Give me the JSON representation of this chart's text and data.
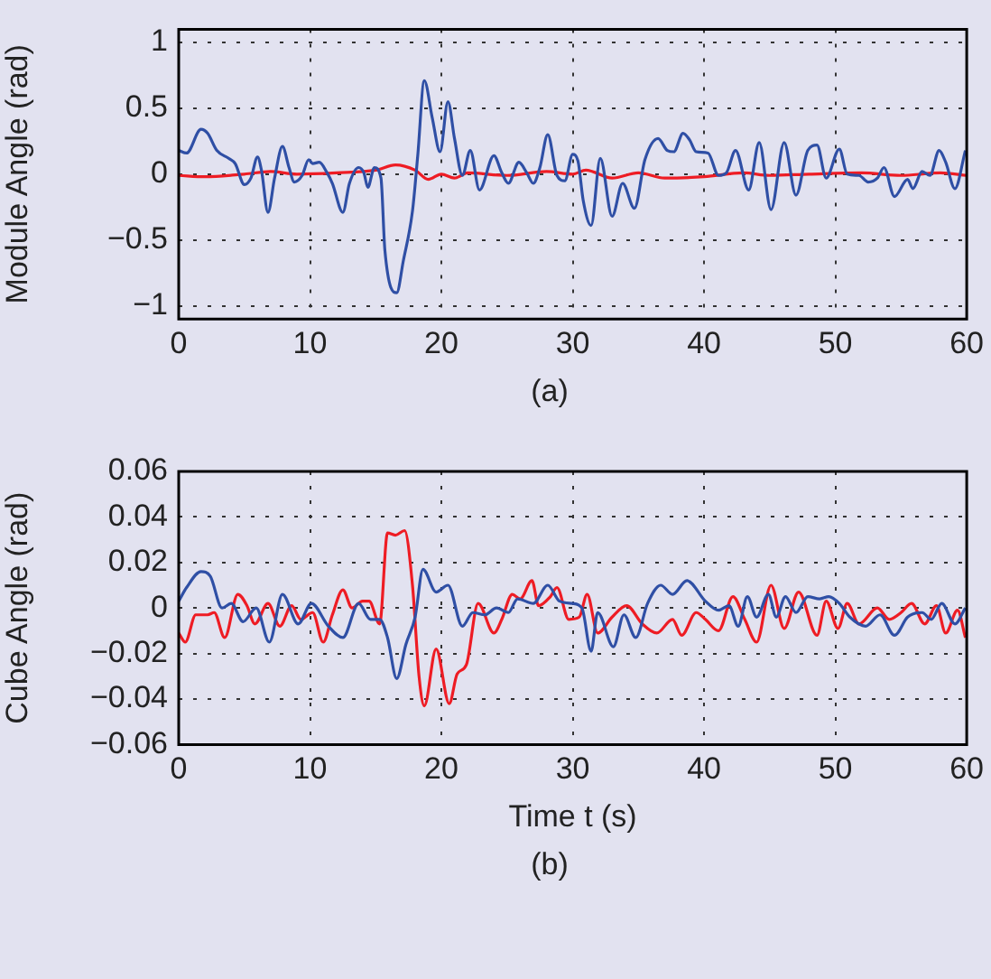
{
  "chart_data": [
    {
      "type": "line",
      "ylabel": "Module Angle (rad)",
      "xlim": [
        0,
        60
      ],
      "xticks": [
        0,
        10,
        20,
        30,
        40,
        50,
        60
      ],
      "ylim": [
        -1.1,
        1.1
      ],
      "yticks": [
        {
          "value": -1,
          "label": "−1"
        },
        {
          "value": -0.5,
          "label": "−0.5"
        },
        0,
        0.5,
        1
      ],
      "grid": true,
      "legend": false,
      "marker": "none",
      "annotations": [
        "(a)"
      ],
      "series": [
        {
          "color": "#2f4fa5",
          "x": [
            0,
            0.6,
            1.7,
            2.2,
            2.9,
            3.8,
            4.3,
            5,
            5.5,
            6,
            6.3,
            6.8,
            7.3,
            7.9,
            8.4,
            8.8,
            9.4,
            9.9,
            10.2,
            10.7,
            11.3,
            11.7,
            12.5,
            13,
            13.7,
            14.1,
            14.4,
            14.9,
            15.4,
            15.7,
            16.6,
            17.1,
            17.8,
            18.2,
            18.7,
            19.3,
            19.9,
            20.5,
            21,
            21.6,
            22.2,
            22.9,
            24,
            24.6,
            25.1,
            25.9,
            26.5,
            27,
            27.5,
            28.1,
            28.8,
            29.4,
            30,
            30.4,
            30.8,
            31.4,
            32.1,
            33,
            33.8,
            34.7,
            35.5,
            36.5,
            37.2,
            37.7,
            38.4,
            38.9,
            39.4,
            40.3,
            41.1,
            41.7,
            42.4,
            43.4,
            44.2,
            45.1,
            46.1,
            47,
            47.9,
            48.6,
            49.3,
            50.3,
            50.9,
            51.8,
            52.5,
            53.2,
            53.7,
            54.5,
            55.5,
            55.9,
            56.6,
            57.2,
            57.9,
            58.4,
            59.1,
            59.9
          ],
          "values": [
            0.18,
            0.16,
            0.34,
            0.31,
            0.18,
            0.12,
            0.08,
            -0.08,
            -0.03,
            0.13,
            0.03,
            -0.29,
            -0.03,
            0.21,
            0.05,
            -0.06,
            -0.01,
            0.11,
            0.08,
            0.09,
            0.01,
            -0.07,
            -0.29,
            -0.07,
            0.05,
            0.01,
            -0.1,
            0.05,
            -0.03,
            -0.58,
            -0.9,
            -0.66,
            -0.28,
            0.14,
            0.71,
            0.43,
            0.17,
            0.55,
            0.27,
            -0.01,
            0.18,
            -0.12,
            0.14,
            0.01,
            -0.07,
            0.09,
            0.01,
            -0.07,
            0.05,
            0.3,
            -0.01,
            -0.05,
            0.15,
            0.1,
            -0.2,
            -0.39,
            0.12,
            -0.32,
            -0.07,
            -0.26,
            0.11,
            0.27,
            0.18,
            0.17,
            0.31,
            0.26,
            0.17,
            0.16,
            -0.01,
            0.01,
            0.18,
            -0.12,
            0.24,
            -0.27,
            0.24,
            -0.16,
            0.18,
            0.22,
            -0.03,
            0.19,
            0,
            -0.01,
            -0.06,
            -0.03,
            0.05,
            -0.17,
            -0.04,
            -0.11,
            0.02,
            -0.01,
            0.18,
            0.09,
            -0.11,
            0.18
          ]
        },
        {
          "color": "#ee1c24",
          "x": [
            0,
            2,
            5,
            7,
            9,
            12,
            15,
            16.5,
            18,
            19,
            20,
            21,
            22,
            25,
            28,
            30,
            31,
            33,
            35,
            37,
            40,
            43,
            45,
            48,
            52,
            55,
            58,
            60
          ],
          "values": [
            -0.01,
            -0.02,
            0,
            0.02,
            0,
            0.01,
            0.03,
            0.07,
            0.03,
            -0.04,
            0,
            -0.03,
            0.01,
            -0.01,
            0.02,
            0,
            0.03,
            -0.03,
            0.01,
            -0.03,
            -0.02,
            0.01,
            -0.01,
            0,
            0.01,
            -0.01,
            0.01,
            -0.01
          ]
        }
      ]
    },
    {
      "type": "line",
      "xlabel": "Time t (s)",
      "ylabel": "Cube Angle (rad)",
      "xlim": [
        0,
        60
      ],
      "xticks": [
        0,
        10,
        20,
        30,
        40,
        50,
        60
      ],
      "ylim": [
        -0.06,
        0.06
      ],
      "yticks": [
        {
          "value": -0.06,
          "label": "−0.06"
        },
        {
          "value": -0.04,
          "label": "−0.04"
        },
        {
          "value": -0.02,
          "label": "−0.02"
        },
        0,
        0.02,
        0.04,
        0.06
      ],
      "grid": true,
      "legend": false,
      "marker": "none",
      "annotations": [
        "(b)"
      ],
      "series": [
        {
          "color": "#2f4fa5",
          "x": [
            0,
            0.6,
            1.7,
            2.4,
            3.3,
            4,
            4.9,
            5.9,
            6.9,
            7.9,
            9.1,
            10.1,
            11.4,
            12.5,
            13.7,
            14.6,
            15.3,
            15.9,
            16.6,
            17.3,
            18,
            18.6,
            19.6,
            20.5,
            21.6,
            22.4,
            23.3,
            24.2,
            25.1,
            25.8,
            27,
            28.1,
            29,
            30,
            30.7,
            31.4,
            31.9,
            33.1,
            33.9,
            34.8,
            35.7,
            36.7,
            37.6,
            38.7,
            40.1,
            41.1,
            41.9,
            42.6,
            43.3,
            44,
            44.9,
            45.5,
            46.2,
            47,
            47.9,
            48.8,
            49.5,
            50.3,
            51.1,
            52.3,
            53.4,
            54.5,
            55.5,
            56.6,
            57.3,
            58.1,
            59.1,
            59.9
          ],
          "values": [
            0.003,
            0.009,
            0.016,
            0.014,
            0,
            0.002,
            -0.006,
            0,
            -0.015,
            0.006,
            -0.007,
            0.002,
            -0.008,
            -0.013,
            0.002,
            -0.005,
            -0.005,
            -0.013,
            -0.031,
            -0.016,
            -0.004,
            0.017,
            0.007,
            0.01,
            -0.008,
            -0.002,
            -0.003,
            0,
            -0.002,
            0.004,
            0.002,
            0.01,
            0.003,
            0.002,
            0,
            -0.019,
            -0.002,
            -0.017,
            -0.003,
            -0.013,
            0.002,
            0.01,
            0.006,
            0.012,
            0.003,
            -0.001,
            0.001,
            -0.008,
            0.005,
            -0.004,
            0.006,
            -0.004,
            0.005,
            -0.002,
            0.005,
            0.004,
            0.005,
            0.002,
            -0.004,
            -0.008,
            -0.003,
            -0.012,
            -0.004,
            -0.002,
            -0.005,
            0.002,
            -0.007,
            0
          ]
        },
        {
          "color": "#ee1c24",
          "x": [
            0,
            0.5,
            1.3,
            2.2,
            2.7,
            3.5,
            4.5,
            5.2,
            5.8,
            6.8,
            7.7,
            8.6,
            9.3,
            10.2,
            11,
            11.7,
            12.5,
            13.2,
            14,
            14.5,
            15.3,
            15.9,
            16.5,
            17.2,
            17.8,
            18.3,
            18.7,
            19.6,
            20.6,
            21.2,
            21.9,
            22.8,
            24,
            24.6,
            25.4,
            26,
            26.9,
            27.4,
            28.3,
            28.8,
            29.7,
            30.5,
            31.1,
            31.9,
            33,
            34.1,
            35.3,
            36.4,
            37.6,
            38.3,
            39.4,
            40.1,
            41.1,
            42.2,
            43.1,
            44,
            45.1,
            46.1,
            47.2,
            48.6,
            49.3,
            50.2,
            50.9,
            51.8,
            53.2,
            54.1,
            55,
            55.8,
            56.8,
            57.7,
            58.4,
            59.3,
            59.9
          ],
          "values": [
            -0.011,
            -0.015,
            -0.003,
            -0.003,
            -0.002,
            -0.013,
            0.006,
            0.001,
            -0.007,
            0.002,
            -0.008,
            0.001,
            -0.005,
            -0.002,
            -0.015,
            -0.003,
            0.008,
            0,
            0.003,
            0.003,
            -0.007,
            0.033,
            0.032,
            0.034,
            0.01,
            -0.03,
            -0.043,
            -0.018,
            -0.042,
            -0.029,
            -0.025,
            0.002,
            -0.011,
            -0.005,
            0.006,
            0.004,
            0.012,
            0.001,
            0.005,
            0.009,
            -0.005,
            -0.004,
            0.006,
            -0.011,
            -0.004,
            0.001,
            -0.007,
            -0.011,
            -0.005,
            -0.012,
            -0.002,
            -0.005,
            -0.01,
            0.005,
            -0.005,
            -0.015,
            0.01,
            -0.009,
            0.007,
            -0.012,
            0.003,
            -0.009,
            0.002,
            -0.007,
            0,
            -0.005,
            -0.002,
            0.002,
            -0.007,
            0.001,
            -0.011,
            -0.001,
            -0.013
          ]
        }
      ]
    }
  ]
}
